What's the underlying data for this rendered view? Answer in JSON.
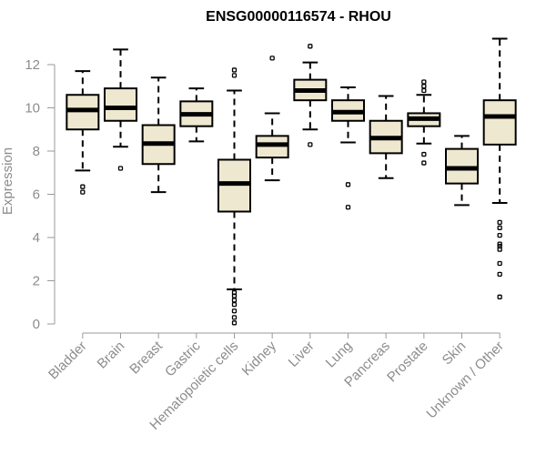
{
  "chart_data": {
    "type": "boxplot",
    "title": "ENSG00000116574 - RHOU",
    "xlabel": "",
    "ylabel": "Expression",
    "ylim": [
      -0.2,
      13.2
    ],
    "yticks": [
      0,
      2,
      4,
      6,
      8,
      10,
      12
    ],
    "ytick_labels": [
      "0",
      "2",
      "4",
      "6",
      "8",
      "10",
      "12"
    ],
    "grid": false,
    "box_color": "#efe8d0",
    "median_color": "#000000",
    "categories": [
      "Bladder",
      "Brain",
      "Breast",
      "Gastric",
      "Hematopoietic cells",
      "Kidney",
      "Liver",
      "Lung",
      "Pancreas",
      "Prostate",
      "Skin",
      "Unknown / Other"
    ],
    "boxes": [
      {
        "whisker_low": 7.1,
        "q1": 9.0,
        "median": 9.9,
        "q3": 10.6,
        "whisker_high": 11.7,
        "outliers": [
          6.1,
          6.35
        ]
      },
      {
        "whisker_low": 8.2,
        "q1": 9.4,
        "median": 10.0,
        "q3": 10.9,
        "whisker_high": 12.7,
        "outliers": [
          7.2
        ]
      },
      {
        "whisker_low": 6.1,
        "q1": 7.4,
        "median": 8.35,
        "q3": 9.2,
        "whisker_high": 11.4,
        "outliers": []
      },
      {
        "whisker_low": 8.45,
        "q1": 9.15,
        "median": 9.7,
        "q3": 10.3,
        "whisker_high": 10.9,
        "outliers": []
      },
      {
        "whisker_low": 1.6,
        "q1": 5.2,
        "median": 6.5,
        "q3": 7.6,
        "whisker_high": 10.8,
        "outliers": [
          11.75,
          11.5,
          1.45,
          1.3,
          1.1,
          0.9,
          0.6,
          0.3,
          0.05
        ]
      },
      {
        "whisker_low": 6.65,
        "q1": 7.7,
        "median": 8.3,
        "q3": 8.7,
        "whisker_high": 9.75,
        "outliers": [
          12.3
        ]
      },
      {
        "whisker_low": 9.0,
        "q1": 10.35,
        "median": 10.8,
        "q3": 11.3,
        "whisker_high": 12.1,
        "outliers": [
          12.85,
          8.3
        ]
      },
      {
        "whisker_low": 8.4,
        "q1": 9.4,
        "median": 9.8,
        "q3": 10.35,
        "whisker_high": 10.95,
        "outliers": [
          6.45,
          5.4
        ]
      },
      {
        "whisker_low": 6.75,
        "q1": 7.9,
        "median": 8.6,
        "q3": 9.4,
        "whisker_high": 10.55,
        "outliers": []
      },
      {
        "whisker_low": 8.35,
        "q1": 9.15,
        "median": 9.5,
        "q3": 9.75,
        "whisker_high": 10.6,
        "outliers": [
          11.2,
          11.0,
          10.8,
          7.85,
          7.45
        ]
      },
      {
        "whisker_low": 5.5,
        "q1": 6.5,
        "median": 7.2,
        "q3": 8.1,
        "whisker_high": 8.7,
        "outliers": []
      },
      {
        "whisker_low": 5.6,
        "q1": 8.3,
        "median": 9.6,
        "q3": 10.35,
        "whisker_high": 13.2,
        "outliers": [
          4.7,
          4.45,
          4.1,
          3.7,
          3.6,
          3.45,
          2.8,
          2.3,
          1.25
        ]
      }
    ]
  }
}
